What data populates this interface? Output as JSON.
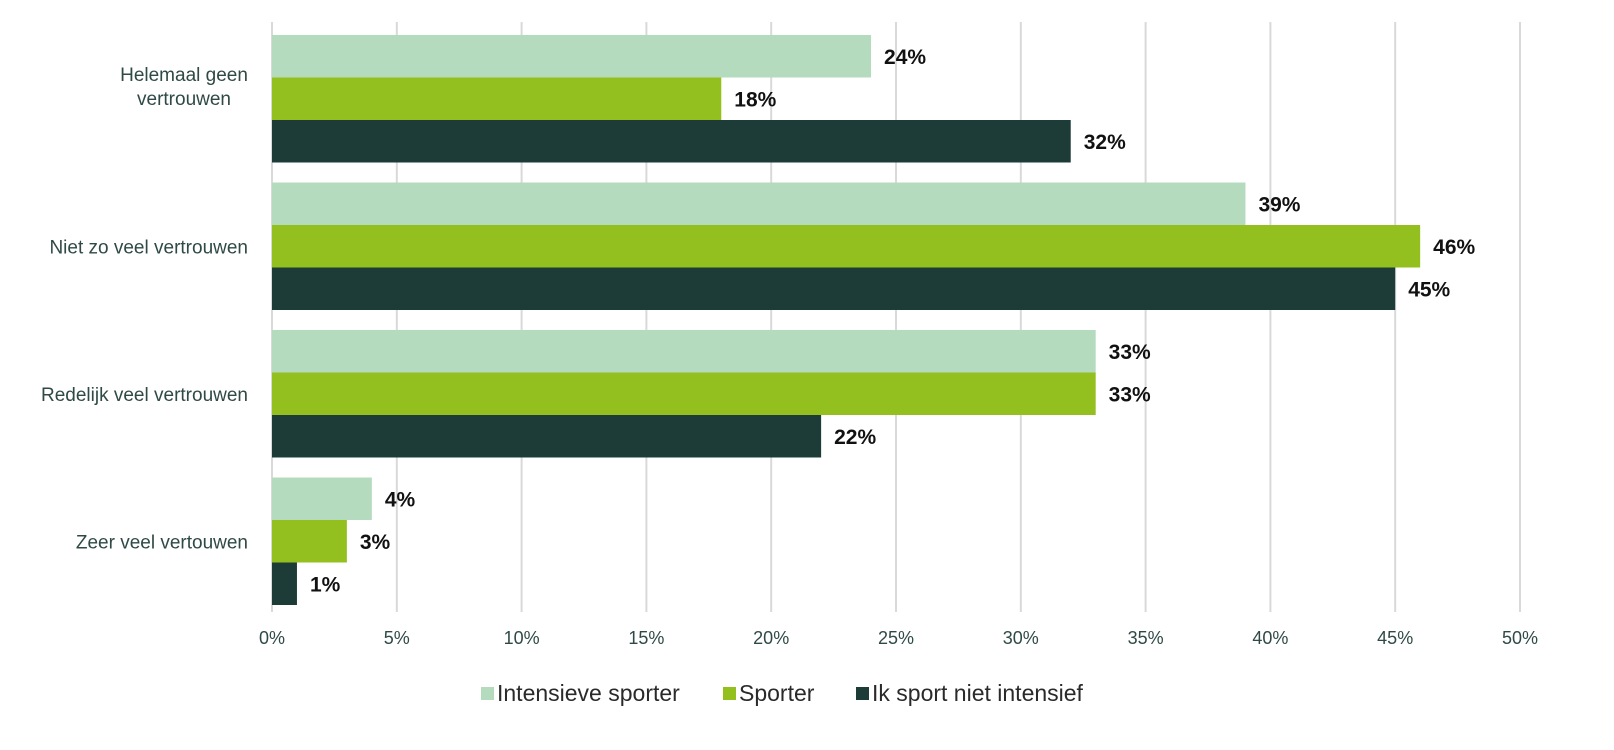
{
  "chart_data": {
    "type": "bar",
    "orientation": "horizontal",
    "categories": [
      "Helemaal geen vertrouwen",
      "Niet zo veel vertrouwen",
      "Redelijk veel vertrouwen",
      "Zeer veel vertouwen"
    ],
    "series": [
      {
        "name": "Intensieve sporter",
        "values": [
          24,
          39,
          33,
          4
        ],
        "color": "#b5dbbe"
      },
      {
        "name": "Sporter",
        "values": [
          18,
          46,
          33,
          3
        ],
        "color": "#93c01f"
      },
      {
        "name": "Ik sport niet intensief",
        "values": [
          32,
          45,
          22,
          1
        ],
        "color": "#1d3c38"
      }
    ],
    "value_suffix": "%",
    "xlim": [
      0,
      50
    ],
    "xticks": [
      0,
      5,
      10,
      15,
      20,
      25,
      30,
      35,
      40,
      45,
      50
    ],
    "xtick_labels": [
      "0%",
      "5%",
      "10%",
      "15%",
      "20%",
      "25%",
      "30%",
      "35%",
      "40%",
      "45%",
      "50%"
    ],
    "grid": "vertical",
    "legend_position": "bottom"
  }
}
